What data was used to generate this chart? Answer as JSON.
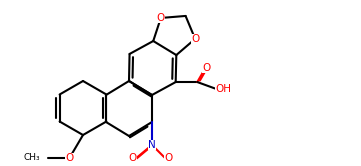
{
  "figsize": [
    3.61,
    1.66
  ],
  "dpi": 100,
  "bg": "#ffffff",
  "bond_color": "#000000",
  "oxygen_color": "#ff0000",
  "nitrogen_color": "#0000cd",
  "lw": 1.5,
  "xlim": [
    0,
    361
  ],
  "ylim": [
    0,
    166
  ]
}
